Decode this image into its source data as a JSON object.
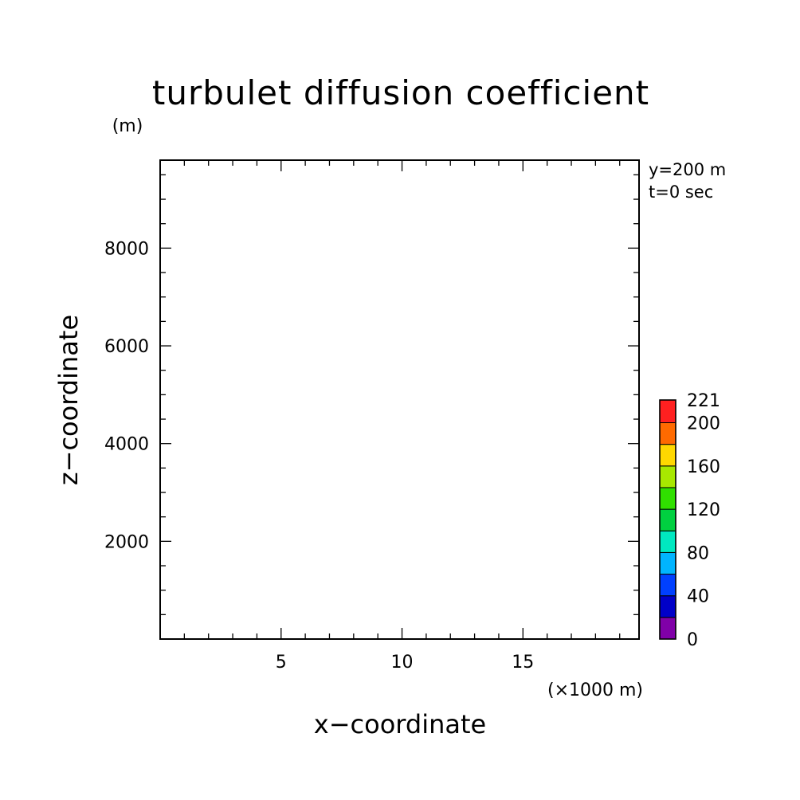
{
  "chart_data": {
    "type": "heatmap",
    "title": "turbulet diffusion coefficient",
    "xlabel": "x−coordinate",
    "ylabel": "z−coordinate",
    "x_unit": "(×1000 m)",
    "y_unit": "(m)",
    "annotations": [
      "y=200 m",
      "t=0 sec"
    ],
    "xlim": [
      0,
      19.8
    ],
    "ylim": [
      0,
      9800
    ],
    "x_major_ticks": [
      5,
      10,
      15
    ],
    "x_tick_labels": [
      "5",
      "10",
      "15"
    ],
    "x_minor_step": 1,
    "y_major_ticks": [
      2000,
      4000,
      6000,
      8000
    ],
    "y_tick_labels": [
      "2000",
      "4000",
      "6000",
      "8000"
    ],
    "y_minor_step": 500,
    "grid": false,
    "colorbar": {
      "range": [
        0,
        221
      ],
      "levels": [
        0,
        20,
        40,
        60,
        80,
        100,
        120,
        140,
        160,
        180,
        200,
        221
      ],
      "tick_values": [
        0,
        40,
        80,
        120,
        160,
        200,
        221
      ],
      "tick_labels": [
        "0",
        "40",
        "80",
        "120",
        "160",
        "200",
        "221"
      ],
      "colors": [
        "#8000a8",
        "#0000c8",
        "#0040ff",
        "#00b4ff",
        "#00e8c0",
        "#00d040",
        "#30e000",
        "#a8e800",
        "#ffd800",
        "#ff6a00",
        "#ff2020"
      ]
    },
    "field_values": []
  }
}
